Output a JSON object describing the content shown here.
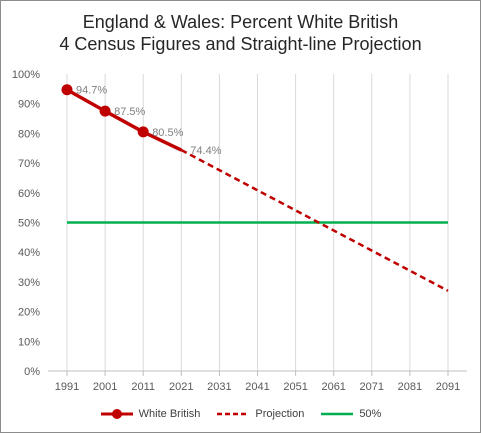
{
  "chart_data": {
    "type": "line",
    "title_line1": "England & Wales: Percent White British",
    "title_line2": "4 Census Figures and Straight-line Projection",
    "categories": [
      "1991",
      "2001",
      "2011",
      "2021",
      "2031",
      "2041",
      "2051",
      "2061",
      "2071",
      "2081",
      "2091"
    ],
    "ylim": [
      0,
      100
    ],
    "yticks": [
      "0%",
      "10%",
      "20%",
      "30%",
      "40%",
      "50%",
      "60%",
      "70%",
      "80%",
      "90%",
      "100%"
    ],
    "series": [
      {
        "name": "White British",
        "x": [
          1991,
          2001,
          2011,
          2021
        ],
        "values": [
          94.7,
          87.5,
          80.5,
          74.4
        ],
        "color": "#c00000",
        "labels": [
          "94.7%",
          "87.5%",
          "80.5%",
          "74.4%"
        ]
      },
      {
        "name": "Projection",
        "x": [
          2021,
          2091
        ],
        "values": [
          74.4,
          27
        ],
        "color": "#c00000",
        "style": "dashed"
      },
      {
        "name": "50%",
        "x": [
          1991,
          2091
        ],
        "values": [
          50,
          50
        ],
        "color": "#00b050"
      }
    ],
    "grid": "vertical",
    "legend_position": "bottom"
  }
}
